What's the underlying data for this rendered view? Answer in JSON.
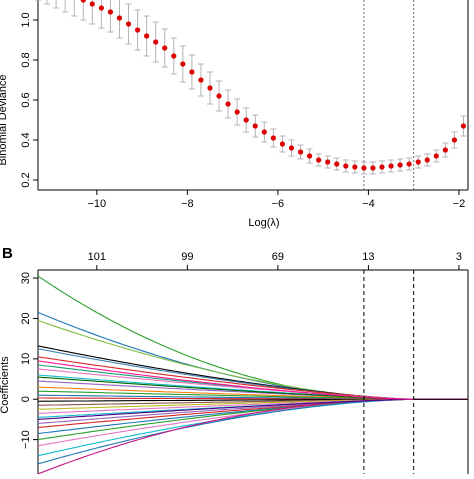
{
  "chart_data": [
    {
      "type": "scatter",
      "panel_label": "",
      "title": "",
      "xlabel": "Log(λ)",
      "ylabel": "Binomial Deviance",
      "xlim": [
        -11.3,
        -1.8
      ],
      "ylim": [
        0.15,
        1.15
      ],
      "xticks": [
        -10,
        -8,
        -6,
        -4,
        -2
      ],
      "xtick_labels": [
        "−10",
        "−8",
        "−6",
        "−4",
        "−2"
      ],
      "yticks": [
        0.2,
        0.4,
        0.6,
        0.8,
        1.0
      ],
      "ytick_labels": [
        "0.2",
        "0.4",
        "0.6",
        "0.8",
        "1.0"
      ],
      "vlines": [
        -4.1,
        -3.0
      ],
      "point_color": "#dd0000",
      "error_bar_color": "#b3b3b3",
      "series": [
        {
          "x": [
            -11.3,
            -11.1,
            -10.9,
            -10.7,
            -10.5,
            -10.3,
            -10.1,
            -9.9,
            -9.7,
            -9.5,
            -9.3,
            -9.1,
            -8.9,
            -8.7,
            -8.5,
            -8.3,
            -8.1,
            -7.9,
            -7.7,
            -7.5,
            -7.3,
            -7.1,
            -6.9,
            -6.7,
            -6.5,
            -6.3,
            -6.1,
            -5.9,
            -5.7,
            -5.5,
            -5.3,
            -5.1,
            -4.9,
            -4.7,
            -4.5,
            -4.3,
            -4.1,
            -3.9,
            -3.7,
            -3.5,
            -3.3,
            -3.1,
            -2.9,
            -2.7,
            -2.5,
            -2.3,
            -2.1,
            -1.9
          ],
          "y": [
            1.2,
            1.18,
            1.16,
            1.14,
            1.12,
            1.1,
            1.08,
            1.06,
            1.04,
            1.01,
            0.98,
            0.95,
            0.92,
            0.89,
            0.86,
            0.82,
            0.78,
            0.74,
            0.7,
            0.66,
            0.62,
            0.58,
            0.54,
            0.5,
            0.47,
            0.44,
            0.41,
            0.38,
            0.36,
            0.34,
            0.32,
            0.3,
            0.29,
            0.28,
            0.27,
            0.265,
            0.26,
            0.26,
            0.265,
            0.27,
            0.275,
            0.28,
            0.29,
            0.3,
            0.32,
            0.35,
            0.4,
            0.47
          ],
          "err": [
            0.1,
            0.1,
            0.1,
            0.1,
            0.1,
            0.1,
            0.1,
            0.1,
            0.1,
            0.1,
            0.1,
            0.1,
            0.1,
            0.1,
            0.095,
            0.09,
            0.09,
            0.085,
            0.08,
            0.08,
            0.075,
            0.07,
            0.065,
            0.06,
            0.055,
            0.05,
            0.045,
            0.04,
            0.04,
            0.035,
            0.035,
            0.03,
            0.03,
            0.03,
            0.03,
            0.03,
            0.03,
            0.03,
            0.03,
            0.03,
            0.03,
            0.03,
            0.03,
            0.03,
            0.03,
            0.035,
            0.04,
            0.05
          ]
        }
      ]
    },
    {
      "type": "line",
      "panel_label": "B",
      "title": "",
      "xlabel": "",
      "ylabel": "Coefficients",
      "xlim": [
        -11.3,
        -1.8
      ],
      "ylim": [
        -20,
        32
      ],
      "xticks": [],
      "yticks": [
        -10,
        0,
        10,
        20,
        30
      ],
      "ytick_labels": [
        "−10",
        "0",
        "10",
        "20",
        "30"
      ],
      "top_axis_positions": [
        -10,
        -8,
        -6,
        -4,
        -2
      ],
      "top_axis_labels": [
        "101",
        "99",
        "69",
        "13",
        "3"
      ],
      "vlines": [
        -4.1,
        -3.0
      ],
      "zero_x": -3.0,
      "series": [
        {
          "start": 30.5,
          "color": "#2ca02c",
          "k": 0.48
        },
        {
          "start": 21.5,
          "color": "#1f77b4",
          "k": 0.55
        },
        {
          "start": 19.5,
          "color": "#7fbf3f",
          "k": 0.6
        },
        {
          "start": 13.2,
          "color": "#000000",
          "k": 0.7
        },
        {
          "start": 12.5,
          "color": "#4682b4",
          "k": 0.7
        },
        {
          "start": 10.5,
          "color": "#d62728",
          "k": 0.75
        },
        {
          "start": 8.5,
          "color": "#1a9e77",
          "k": 0.75
        },
        {
          "start": 7.5,
          "color": "#e377c2",
          "k": 0.8
        },
        {
          "start": 6.0,
          "color": "#17becf",
          "k": 0.8
        },
        {
          "start": 4.5,
          "color": "#9467bd",
          "k": 0.85
        },
        {
          "start": 3.0,
          "color": "#ff7f0e",
          "k": 0.85
        },
        {
          "start": 2.0,
          "color": "#2ca02c",
          "k": 0.9
        },
        {
          "start": 1.0,
          "color": "#1f77b4",
          "k": 0.9
        },
        {
          "start": 0.3,
          "color": "#d62728",
          "k": 0.9
        },
        {
          "start": -0.5,
          "color": "#000000",
          "k": 0.9
        },
        {
          "start": -1.5,
          "color": "#8c564b",
          "k": 0.9
        },
        {
          "start": -2.5,
          "color": "#bcbd22",
          "k": 0.85
        },
        {
          "start": -3.5,
          "color": "#e377c2",
          "k": 0.85
        },
        {
          "start": -4.5,
          "color": "#17becf",
          "k": 0.85
        },
        {
          "start": -6.0,
          "color": "#9467bd",
          "k": 0.8
        },
        {
          "start": -7.0,
          "color": "#d62728",
          "k": 0.8
        },
        {
          "start": -8.5,
          "color": "#1f77b4",
          "k": 0.75
        },
        {
          "start": -10.0,
          "color": "#2ca02c",
          "k": 0.7
        },
        {
          "start": -11.5,
          "color": "#e377c2",
          "k": 0.7
        },
        {
          "start": -14.0,
          "color": "#17becf",
          "k": 0.65
        },
        {
          "start": -16.0,
          "color": "#1f77b4",
          "k": 0.6
        },
        {
          "start": -18.5,
          "color": "#c71585",
          "k": 0.5
        },
        {
          "start": 5.5,
          "color": "#006400",
          "k": 0.8
        },
        {
          "start": -5.0,
          "color": "#4b0082",
          "k": 0.8
        },
        {
          "start": 9.5,
          "color": "#ff1493",
          "k": 0.7
        }
      ]
    }
  ]
}
